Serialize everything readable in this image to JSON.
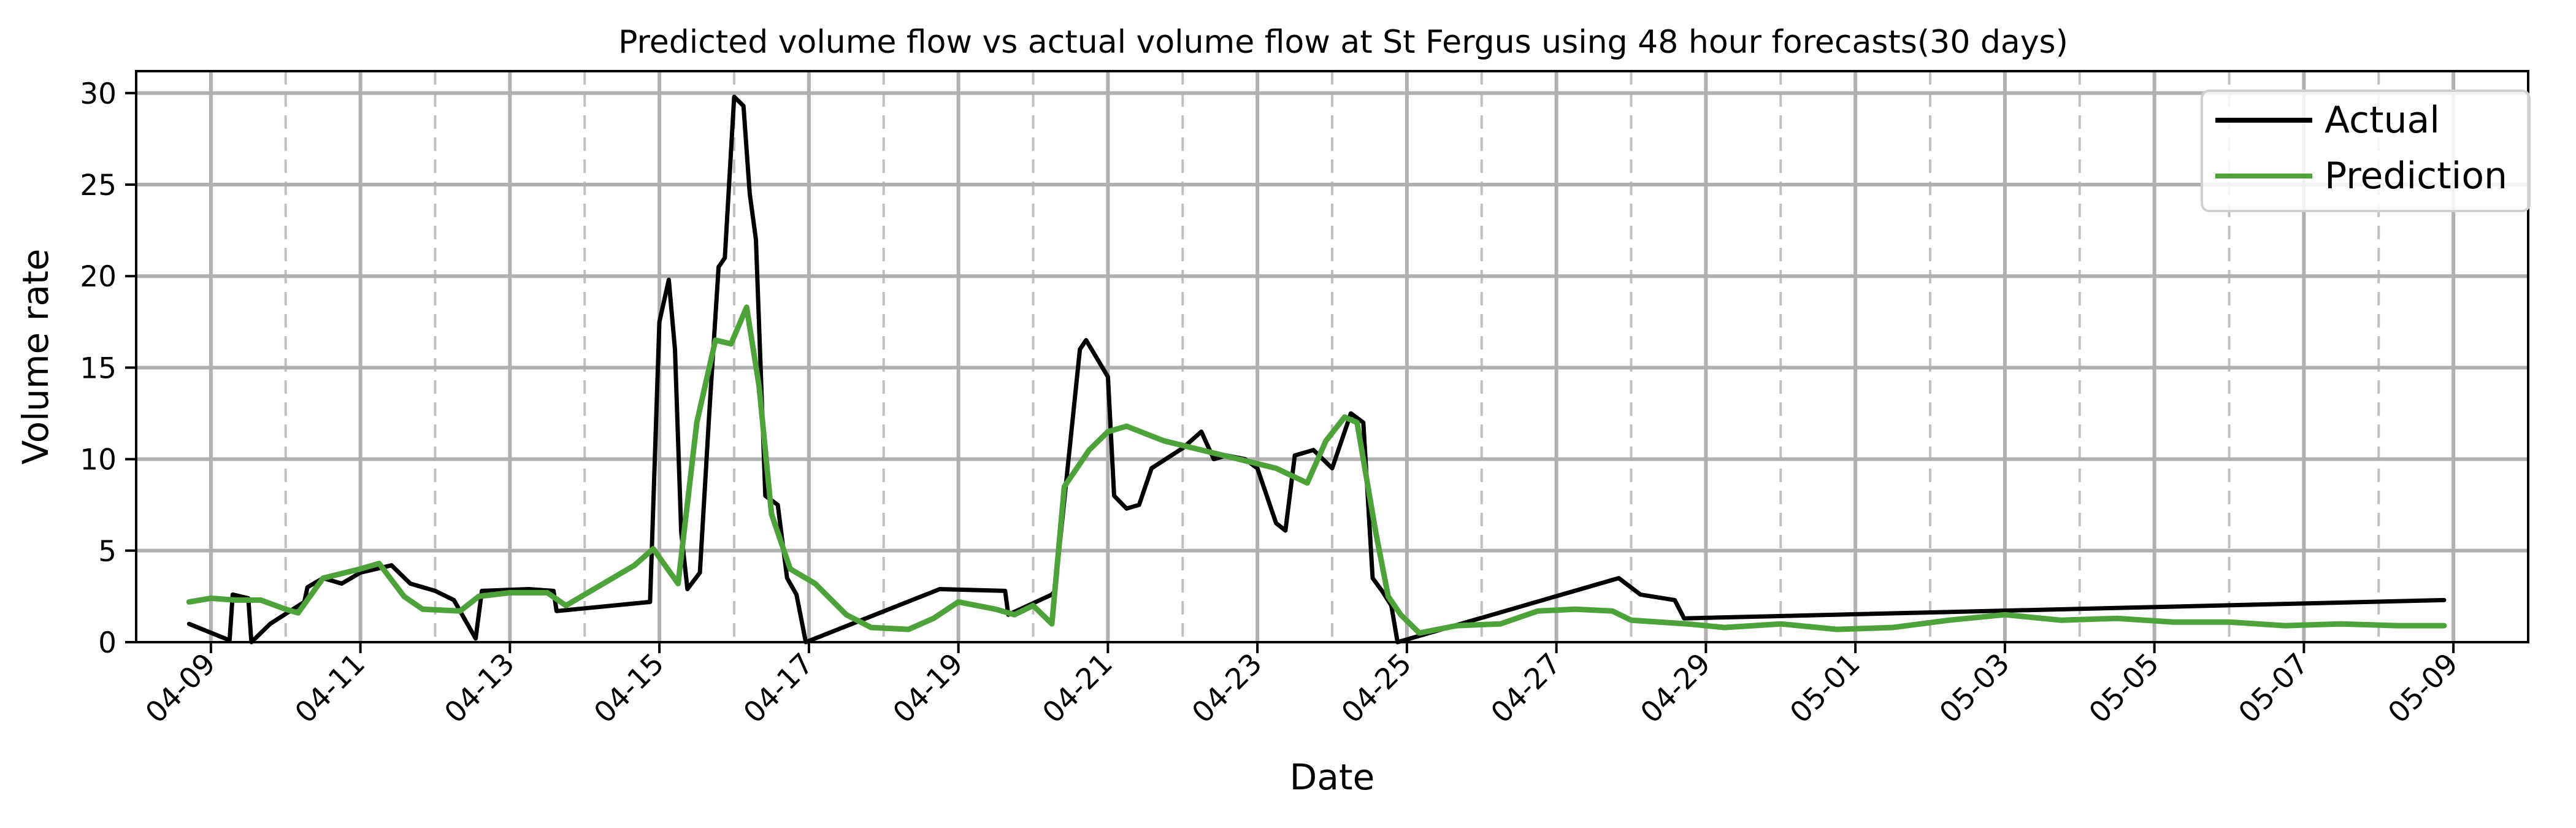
{
  "chart_data": {
    "type": "line",
    "title": "Predicted volume flow vs actual volume flow at St Fergus using 48 hour forecasts(30 days)",
    "xlabel": "Date",
    "ylabel": "Volume rate",
    "xlim": [
      "2024-04-08T00:00",
      "2024-05-10T00:00"
    ],
    "ylim": [
      0,
      31.2
    ],
    "yticks": [
      0,
      5,
      10,
      15,
      20,
      25,
      30
    ],
    "xticks_major": [
      "2024-04-09",
      "2024-04-11",
      "2024-04-13",
      "2024-04-15",
      "2024-04-17",
      "2024-04-19",
      "2024-04-21",
      "2024-04-23",
      "2024-04-25",
      "2024-04-27",
      "2024-04-29",
      "2024-05-01",
      "2024-05-03",
      "2024-05-05",
      "2024-05-07",
      "2024-05-09"
    ],
    "xtick_labels": [
      "04-09",
      "04-11",
      "04-13",
      "04-15",
      "04-17",
      "04-19",
      "04-21",
      "04-23",
      "04-25",
      "04-27",
      "04-29",
      "05-01",
      "05-03",
      "05-05",
      "05-07",
      "05-09"
    ],
    "grid": true,
    "legend": "top-right",
    "series": [
      {
        "name": "Actual",
        "color": "#000000",
        "points": [
          [
            "2024-04-08T17:00",
            1.0
          ],
          [
            "2024-04-09T06:00",
            0.1
          ],
          [
            "2024-04-09T07:00",
            2.6
          ],
          [
            "2024-04-09T12:00",
            2.4
          ],
          [
            "2024-04-09T13:00",
            0.0
          ],
          [
            "2024-04-09T19:00",
            1.0
          ],
          [
            "2024-04-10T06:00",
            2.2
          ],
          [
            "2024-04-10T07:00",
            3.0
          ],
          [
            "2024-04-10T12:00",
            3.5
          ],
          [
            "2024-04-10T18:00",
            3.2
          ],
          [
            "2024-04-11T00:00",
            3.8
          ],
          [
            "2024-04-11T10:00",
            4.2
          ],
          [
            "2024-04-11T16:00",
            3.2
          ],
          [
            "2024-04-12T00:00",
            2.8
          ],
          [
            "2024-04-12T06:00",
            2.3
          ],
          [
            "2024-04-12T13:00",
            0.2
          ],
          [
            "2024-04-12T15:00",
            2.8
          ],
          [
            "2024-04-13T06:00",
            2.9
          ],
          [
            "2024-04-13T14:00",
            2.8
          ],
          [
            "2024-04-13T15:00",
            1.7
          ],
          [
            "2024-04-14T21:00",
            2.2
          ],
          [
            "2024-04-15T00:00",
            17.5
          ],
          [
            "2024-04-15T03:00",
            19.8
          ],
          [
            "2024-04-15T05:00",
            16.0
          ],
          [
            "2024-04-15T07:00",
            6.0
          ],
          [
            "2024-04-15T09:00",
            2.9
          ],
          [
            "2024-04-15T13:00",
            3.8
          ],
          [
            "2024-04-15T16:00",
            12.5
          ],
          [
            "2024-04-15T19:00",
            20.5
          ],
          [
            "2024-04-15T21:00",
            21.0
          ],
          [
            "2024-04-16T00:00",
            29.8
          ],
          [
            "2024-04-16T03:00",
            29.3
          ],
          [
            "2024-04-16T05:00",
            24.5
          ],
          [
            "2024-04-16T07:00",
            22.0
          ],
          [
            "2024-04-16T10:00",
            8.0
          ],
          [
            "2024-04-16T14:00",
            7.5
          ],
          [
            "2024-04-16T17:00",
            3.5
          ],
          [
            "2024-04-16T20:00",
            2.6
          ],
          [
            "2024-04-16T23:00",
            0.0
          ],
          [
            "2024-04-18T18:00",
            2.9
          ],
          [
            "2024-04-19T15:00",
            2.8
          ],
          [
            "2024-04-19T16:00",
            1.5
          ],
          [
            "2024-04-20T06:00",
            2.6
          ],
          [
            "2024-04-20T07:00",
            2.8
          ],
          [
            "2024-04-20T15:00",
            16.0
          ],
          [
            "2024-04-20T17:00",
            16.5
          ],
          [
            "2024-04-21T00:00",
            14.5
          ],
          [
            "2024-04-21T02:00",
            8.0
          ],
          [
            "2024-04-21T06:00",
            7.3
          ],
          [
            "2024-04-21T10:00",
            7.5
          ],
          [
            "2024-04-21T14:00",
            9.5
          ],
          [
            "2024-04-22T00:00",
            10.6
          ],
          [
            "2024-04-22T06:00",
            11.5
          ],
          [
            "2024-04-22T10:00",
            10.0
          ],
          [
            "2024-04-22T14:00",
            10.2
          ],
          [
            "2024-04-22T20:00",
            10.0
          ],
          [
            "2024-04-23T00:00",
            9.5
          ],
          [
            "2024-04-23T06:00",
            6.5
          ],
          [
            "2024-04-23T09:00",
            6.1
          ],
          [
            "2024-04-23T12:00",
            10.2
          ],
          [
            "2024-04-23T18:00",
            10.5
          ],
          [
            "2024-04-24T00:00",
            9.5
          ],
          [
            "2024-04-24T06:00",
            12.5
          ],
          [
            "2024-04-24T10:00",
            12.0
          ],
          [
            "2024-04-24T13:00",
            3.5
          ],
          [
            "2024-04-24T16:00",
            2.8
          ],
          [
            "2024-04-24T19:00",
            2.0
          ],
          [
            "2024-04-24T21:00",
            0.0
          ],
          [
            "2024-04-27T20:00",
            3.5
          ],
          [
            "2024-04-28T03:00",
            2.6
          ],
          [
            "2024-04-28T14:00",
            2.3
          ],
          [
            "2024-04-28T17:00",
            1.3
          ],
          [
            "2024-05-08T21:00",
            2.3
          ]
        ]
      },
      {
        "name": "Prediction",
        "color": "#4da33a",
        "points": [
          [
            "2024-04-08T17:00",
            2.2
          ],
          [
            "2024-04-09T00:00",
            2.4
          ],
          [
            "2024-04-09T08:00",
            2.3
          ],
          [
            "2024-04-09T16:00",
            2.3
          ],
          [
            "2024-04-10T00:00",
            1.8
          ],
          [
            "2024-04-10T04:00",
            1.6
          ],
          [
            "2024-04-10T12:00",
            3.5
          ],
          [
            "2024-04-11T00:00",
            4.0
          ],
          [
            "2024-04-11T06:00",
            4.3
          ],
          [
            "2024-04-11T14:00",
            2.5
          ],
          [
            "2024-04-11T20:00",
            1.8
          ],
          [
            "2024-04-12T08:00",
            1.7
          ],
          [
            "2024-04-12T14:00",
            2.5
          ],
          [
            "2024-04-13T00:00",
            2.7
          ],
          [
            "2024-04-13T12:00",
            2.7
          ],
          [
            "2024-04-13T18:00",
            2.0
          ],
          [
            "2024-04-14T06:00",
            3.2
          ],
          [
            "2024-04-14T16:00",
            4.2
          ],
          [
            "2024-04-14T22:00",
            5.1
          ],
          [
            "2024-04-15T06:00",
            3.2
          ],
          [
            "2024-04-15T12:00",
            12.0
          ],
          [
            "2024-04-15T18:00",
            16.5
          ],
          [
            "2024-04-15T23:00",
            16.3
          ],
          [
            "2024-04-16T04:00",
            18.3
          ],
          [
            "2024-04-16T08:00",
            14.0
          ],
          [
            "2024-04-16T12:00",
            7.0
          ],
          [
            "2024-04-16T18:00",
            4.0
          ],
          [
            "2024-04-17T02:00",
            3.2
          ],
          [
            "2024-04-17T12:00",
            1.5
          ],
          [
            "2024-04-17T20:00",
            0.8
          ],
          [
            "2024-04-18T08:00",
            0.7
          ],
          [
            "2024-04-18T16:00",
            1.3
          ],
          [
            "2024-04-19T00:00",
            2.2
          ],
          [
            "2024-04-19T12:00",
            1.8
          ],
          [
            "2024-04-19T18:00",
            1.5
          ],
          [
            "2024-04-20T00:00",
            2.0
          ],
          [
            "2024-04-20T06:00",
            1.0
          ],
          [
            "2024-04-20T10:00",
            8.5
          ],
          [
            "2024-04-20T18:00",
            10.5
          ],
          [
            "2024-04-21T00:00",
            11.5
          ],
          [
            "2024-04-21T06:00",
            11.8
          ],
          [
            "2024-04-21T18:00",
            11.0
          ],
          [
            "2024-04-22T06:00",
            10.5
          ],
          [
            "2024-04-22T18:00",
            10.0
          ],
          [
            "2024-04-23T06:00",
            9.5
          ],
          [
            "2024-04-23T16:00",
            8.7
          ],
          [
            "2024-04-23T22:00",
            11.0
          ],
          [
            "2024-04-24T04:00",
            12.3
          ],
          [
            "2024-04-24T08:00",
            12.0
          ],
          [
            "2024-04-24T14:00",
            6.0
          ],
          [
            "2024-04-24T18:00",
            2.5
          ],
          [
            "2024-04-24T22:00",
            1.5
          ],
          [
            "2024-04-25T04:00",
            0.5
          ],
          [
            "2024-04-25T16:00",
            0.9
          ],
          [
            "2024-04-26T06:00",
            1.0
          ],
          [
            "2024-04-26T18:00",
            1.7
          ],
          [
            "2024-04-27T06:00",
            1.8
          ],
          [
            "2024-04-27T18:00",
            1.7
          ],
          [
            "2024-04-28T00:00",
            1.2
          ],
          [
            "2024-04-28T18:00",
            1.0
          ],
          [
            "2024-04-29T06:00",
            0.8
          ],
          [
            "2024-04-30T00:00",
            1.0
          ],
          [
            "2024-04-30T18:00",
            0.7
          ],
          [
            "2024-05-01T12:00",
            0.8
          ],
          [
            "2024-05-02T06:00",
            1.2
          ],
          [
            "2024-05-03T00:00",
            1.5
          ],
          [
            "2024-05-03T18:00",
            1.2
          ],
          [
            "2024-05-04T12:00",
            1.3
          ],
          [
            "2024-05-05T06:00",
            1.1
          ],
          [
            "2024-05-06T00:00",
            1.1
          ],
          [
            "2024-05-06T18:00",
            0.9
          ],
          [
            "2024-05-07T12:00",
            1.0
          ],
          [
            "2024-05-08T06:00",
            0.9
          ],
          [
            "2024-05-08T21:00",
            0.9
          ]
        ]
      }
    ]
  }
}
